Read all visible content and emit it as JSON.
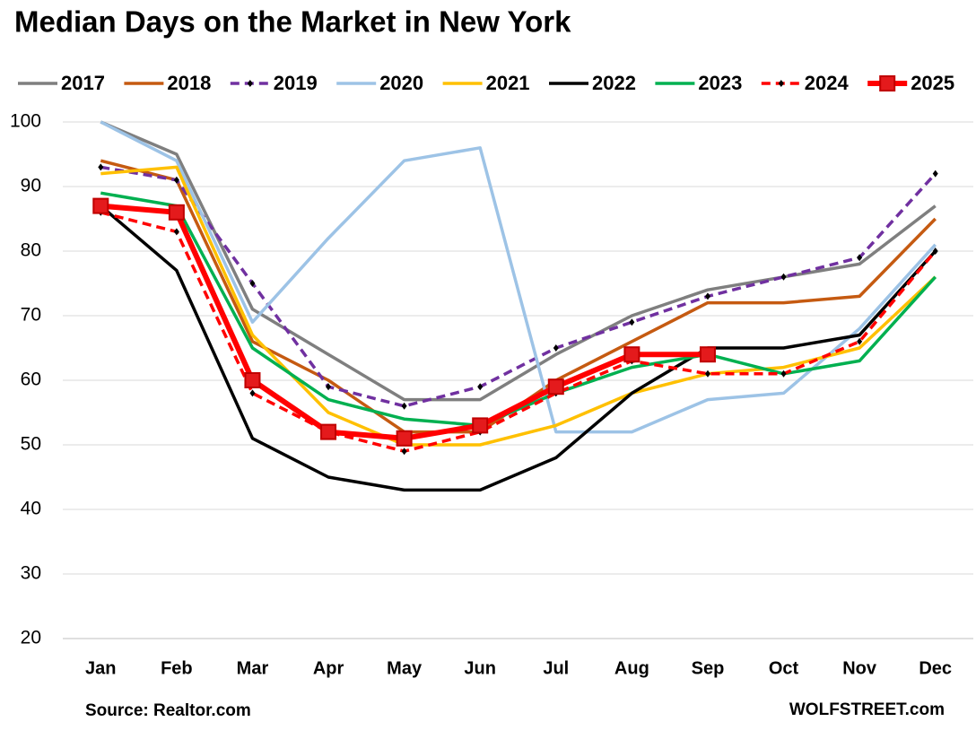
{
  "chart_data": {
    "type": "line",
    "title": "Median Days on the Market in New York",
    "categories": [
      "Jan",
      "Feb",
      "Mar",
      "Apr",
      "May",
      "Jun",
      "Jul",
      "Aug",
      "Sep",
      "Oct",
      "Nov",
      "Dec"
    ],
    "ylim": [
      20,
      100
    ],
    "yticks": [
      20,
      30,
      40,
      50,
      60,
      70,
      80,
      90,
      100
    ],
    "grid": true,
    "legend": "top",
    "series": [
      {
        "name": "2017",
        "color": "#7f7f7f",
        "values": [
          100,
          95,
          71,
          64,
          57,
          57,
          64,
          70,
          74,
          76,
          78,
          87
        ]
      },
      {
        "name": "2018",
        "color": "#c55a11",
        "values": [
          94,
          91,
          66,
          60,
          52,
          52,
          60,
          66,
          72,
          72,
          73,
          85
        ]
      },
      {
        "name": "2019",
        "color": "#7030a0",
        "dash": true,
        "marker": "diamond",
        "values": [
          93,
          91,
          75,
          59,
          56,
          59,
          65,
          69,
          73,
          76,
          79,
          92
        ]
      },
      {
        "name": "2020",
        "color": "#9dc3e6",
        "values": [
          100,
          94,
          69,
          82,
          94,
          96,
          52,
          52,
          57,
          58,
          68,
          81
        ]
      },
      {
        "name": "2021",
        "color": "#ffc000",
        "values": [
          92,
          93,
          67,
          55,
          50,
          50,
          53,
          58,
          61,
          62,
          65,
          76
        ]
      },
      {
        "name": "2022",
        "color": "#000000",
        "values": [
          87,
          77,
          51,
          45,
          43,
          43,
          48,
          58,
          65,
          65,
          67,
          80
        ]
      },
      {
        "name": "2023",
        "color": "#00b050",
        "values": [
          89,
          87,
          65,
          57,
          54,
          53,
          58,
          62,
          64,
          61,
          63,
          76
        ]
      },
      {
        "name": "2024",
        "color": "#ff0000",
        "dash": true,
        "marker": "diamond",
        "values": [
          86,
          83,
          58,
          52,
          49,
          52,
          58,
          63,
          61,
          61,
          66,
          80
        ]
      },
      {
        "name": "2025",
        "color": "#ff0000",
        "bold": true,
        "marker": "square",
        "values": [
          87,
          86,
          60,
          52,
          51,
          53,
          59,
          64,
          64,
          null,
          null,
          null
        ]
      }
    ],
    "source": "Source: Realtor.com",
    "credit": "WOLFSTREET.com"
  }
}
